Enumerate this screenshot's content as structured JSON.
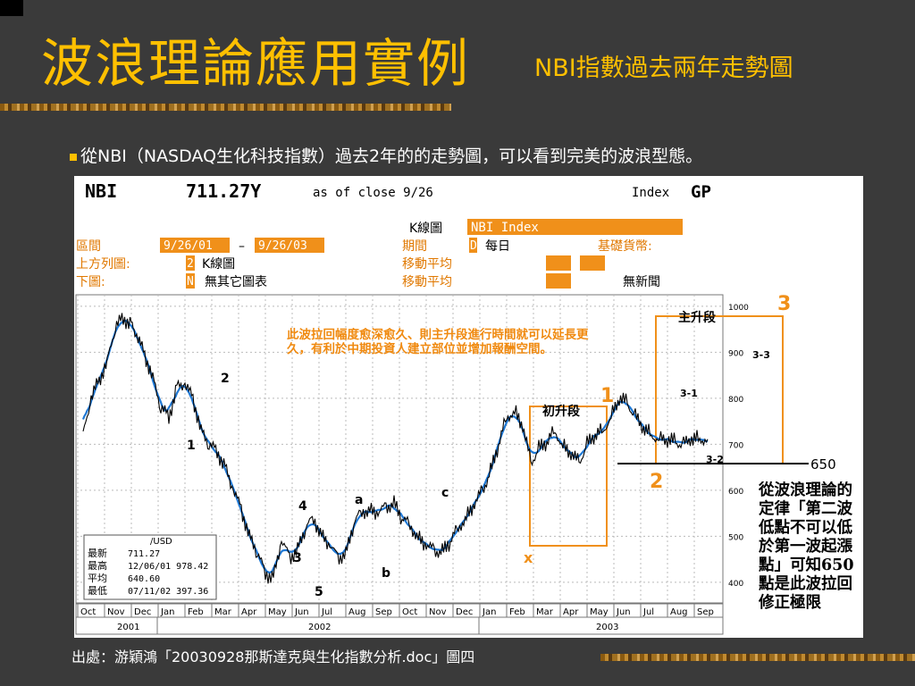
{
  "slide": {
    "title": "波浪理論應用實例",
    "subtitle": "NBI指數過去兩年走勢圖",
    "bullet": "從NBI（NASDAQ生化科技指數）過去2年的的走勢圖，可以看到完美的波浪型態。",
    "source": "出處：游穎鴻「20030928那斯達克與生化指數分析.doc」圖四"
  },
  "terminal": {
    "symbol": "NBI",
    "price": "711.27Y",
    "as_of": "as of close  9/26",
    "index_label": "Index",
    "gp": "GP",
    "k_chart_label": "K線圖",
    "index_name": "NBI Index",
    "range_label": "區間",
    "range_from": "9/26/01",
    "range_dash": "–",
    "range_to": "9/26/03",
    "upper_label": "上方列圖:",
    "upper_code": "2",
    "upper_value": "K線圖",
    "lower_label": "下圖:",
    "lower_code": "N",
    "lower_value": "無其它圖表",
    "period_label": "期間",
    "period_code": "D",
    "period_value": "每日",
    "ma_label_1": "移動平均",
    "ma_label_2": "移動平均",
    "base_currency": "基礎貨幣:",
    "no_news": "無新聞"
  },
  "stats": {
    "unit": "/USD",
    "rows": [
      {
        "label": "最新",
        "value": "711.27"
      },
      {
        "label": "最高",
        "value": "12/06/01 978.42"
      },
      {
        "label": "平均",
        "value": "640.60"
      },
      {
        "label": "最低",
        "value": "07/11/02 397.36"
      }
    ]
  },
  "chart_data": {
    "type": "line",
    "title": "",
    "xlabel": "",
    "ylabel": "",
    "ylim": [
      355,
      1025
    ],
    "yticks": [
      400,
      500,
      600,
      700,
      800,
      900,
      1000
    ],
    "months": [
      "Oct",
      "Nov",
      "Dec",
      "Jan",
      "Feb",
      "Mar",
      "Apr",
      "May",
      "Jun",
      "Jul",
      "Aug",
      "Sep",
      "Oct",
      "Nov",
      "Dec",
      "Jan",
      "Feb",
      "Mar",
      "Apr",
      "May",
      "Jun",
      "Jul",
      "Aug",
      "Sep"
    ],
    "years": [
      "2001",
      "2002",
      "2003"
    ],
    "series": [
      {
        "x": [
          0,
          0.3,
          0.6,
          0.9,
          1.2,
          1.5,
          1.8,
          2.0,
          2.3,
          2.6,
          2.9,
          3.2,
          3.5,
          3.8,
          4.1,
          4.4,
          4.7,
          5.0,
          5.3,
          5.6,
          5.9,
          6.2,
          6.5,
          6.8,
          7.1,
          7.4,
          7.7,
          8.0,
          8.3,
          8.6,
          8.9,
          9.2,
          9.5,
          9.8,
          10.1,
          10.4,
          10.7,
          11.0,
          11.3,
          11.6,
          11.9,
          12.2,
          12.5,
          12.8,
          13.1,
          13.4,
          13.7,
          14.0,
          14.3,
          14.6,
          14.9,
          15.2,
          15.5,
          15.8,
          16.1,
          16.4,
          16.7,
          17.0,
          17.3,
          17.6,
          17.9,
          18.2,
          18.5,
          18.8,
          19.1,
          19.4,
          19.7,
          20.0,
          20.3,
          20.6,
          20.9,
          21.2,
          21.5,
          21.8,
          22.1,
          22.4,
          22.7,
          23.0,
          23.3
        ],
        "y": [
          720,
          800,
          840,
          880,
          955,
          975,
          960,
          935,
          895,
          845,
          780,
          760,
          825,
          830,
          800,
          730,
          700,
          685,
          650,
          600,
          560,
          500,
          465,
          420,
          410,
          490,
          455,
          470,
          520,
          540,
          500,
          480,
          455,
          460,
          530,
          555,
          555,
          550,
          565,
          570,
          540,
          525,
          495,
          480,
          470,
          465,
          490,
          520,
          540,
          570,
          600,
          640,
          700,
          760,
          770,
          740,
          660,
          690,
          705,
          730,
          695,
          680,
          660,
          700,
          720,
          730,
          760,
          800,
          790,
          760,
          735,
          720,
          711,
          710,
          705,
          700,
          712,
          711,
          711
        ]
      }
    ],
    "wave_labels": [
      "1",
      "2",
      "3",
      "4",
      "5",
      "a",
      "b",
      "c",
      "x",
      "1",
      "2",
      "3",
      "3-1",
      "3-2",
      "3-3"
    ],
    "boxes": [
      "初升段",
      "主升段"
    ],
    "level_line": "650",
    "note_top": "此波拉回幅度愈深愈久、則主升段進行時間就可以延長更久，有利於中期投資人建立部位並增加報酬空間。",
    "note_right": "從波浪理論的定律「第二波低點不可以低於第一波起漲點」可知650點是此波拉回修正極限",
    "colors": {
      "accent": "#ffc000",
      "orange": "#f0901a",
      "price": "#000000",
      "ma": "#1f78d4"
    }
  }
}
